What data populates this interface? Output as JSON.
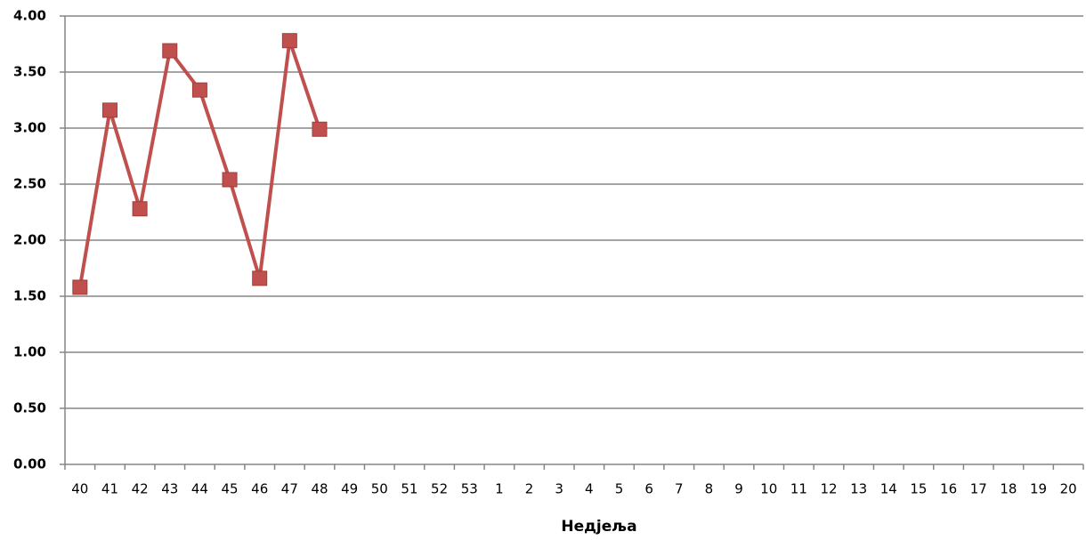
{
  "chart_data": {
    "type": "line",
    "x_title": "Недјеља",
    "categories": [
      "40",
      "41",
      "42",
      "43",
      "44",
      "45",
      "46",
      "47",
      "48",
      "49",
      "50",
      "51",
      "52",
      "53",
      "1",
      "2",
      "3",
      "4",
      "5",
      "6",
      "7",
      "8",
      "9",
      "10",
      "11",
      "12",
      "13",
      "14",
      "15",
      "16",
      "17",
      "18",
      "19",
      "20"
    ],
    "series": [
      {
        "color": "#c0504d",
        "values": [
          1.58,
          3.16,
          2.28,
          3.69,
          3.34,
          2.54,
          1.66,
          3.78,
          2.99,
          null,
          null,
          null,
          null,
          null,
          null,
          null,
          null,
          null,
          null,
          null,
          null,
          null,
          null,
          null,
          null,
          null,
          null,
          null,
          null,
          null,
          null,
          null,
          null,
          null
        ]
      }
    ],
    "ylim": [
      0,
      4
    ],
    "yticks": [
      {
        "value": 0,
        "label": "0.00"
      },
      {
        "value": 0.5,
        "label": "0.50"
      },
      {
        "value": 1,
        "label": "1.00"
      },
      {
        "value": 1.5,
        "label": "1.50"
      },
      {
        "value": 2,
        "label": "2.00"
      },
      {
        "value": 2.5,
        "label": "2.50"
      },
      {
        "value": 3,
        "label": "3.00"
      },
      {
        "value": 3.5,
        "label": "3.50"
      },
      {
        "value": 4,
        "label": "4.00"
      }
    ],
    "grid": true
  }
}
